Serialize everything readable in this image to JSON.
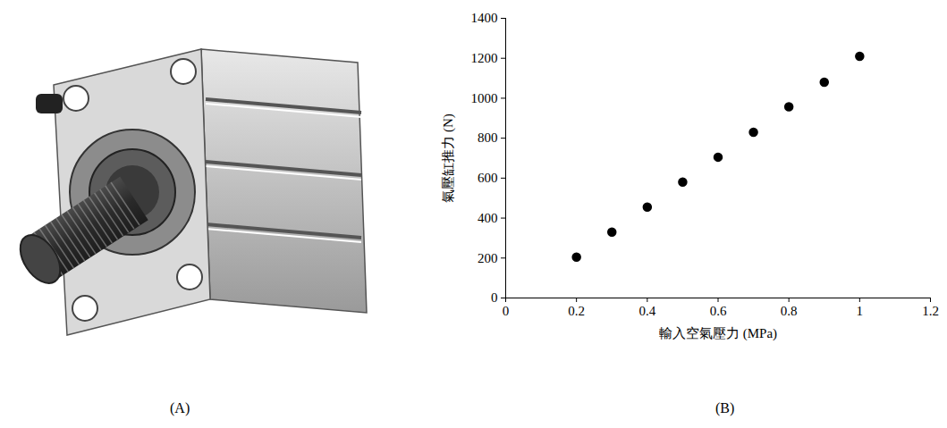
{
  "figure": {
    "panel_labels": [
      "(A)",
      "(B)"
    ]
  },
  "chart_data": {
    "type": "scatter",
    "x_label": "輸入空氣壓力 (MPa)",
    "y_label": "氣壓缸推力 (N)",
    "x": [
      0.2,
      0.3,
      0.4,
      0.5,
      0.6,
      0.7,
      0.8,
      0.9,
      1
    ],
    "values": [
      205,
      330,
      455,
      580,
      705,
      830,
      957,
      1080,
      1210
    ],
    "color": "#000000",
    "marker": "circle",
    "xlim": [
      0,
      1.2
    ],
    "xticks": [
      0,
      0.2,
      0.4,
      0.6,
      0.8,
      1,
      1.2
    ],
    "ylim": [
      0,
      1400
    ],
    "yticks": [
      0,
      200,
      400,
      600,
      800,
      1000,
      1200,
      1400
    ],
    "grid": false
  }
}
